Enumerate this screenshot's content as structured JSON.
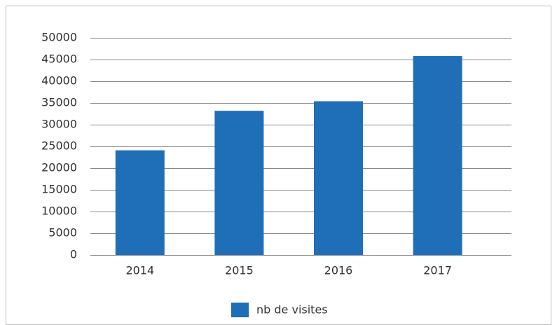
{
  "chart_data": {
    "type": "bar",
    "categories": [
      "2014",
      "2015",
      "2016",
      "2017"
    ],
    "series": [
      {
        "name": "nb de visites",
        "color": "#1f6fb8",
        "values": [
          24100,
          33200,
          35400,
          45800
        ]
      }
    ],
    "ylim": [
      0,
      50000
    ],
    "yticks": [
      0,
      5000,
      10000,
      15000,
      20000,
      25000,
      30000,
      35000,
      40000,
      45000,
      50000
    ],
    "grid": true,
    "legend": "bottom"
  }
}
